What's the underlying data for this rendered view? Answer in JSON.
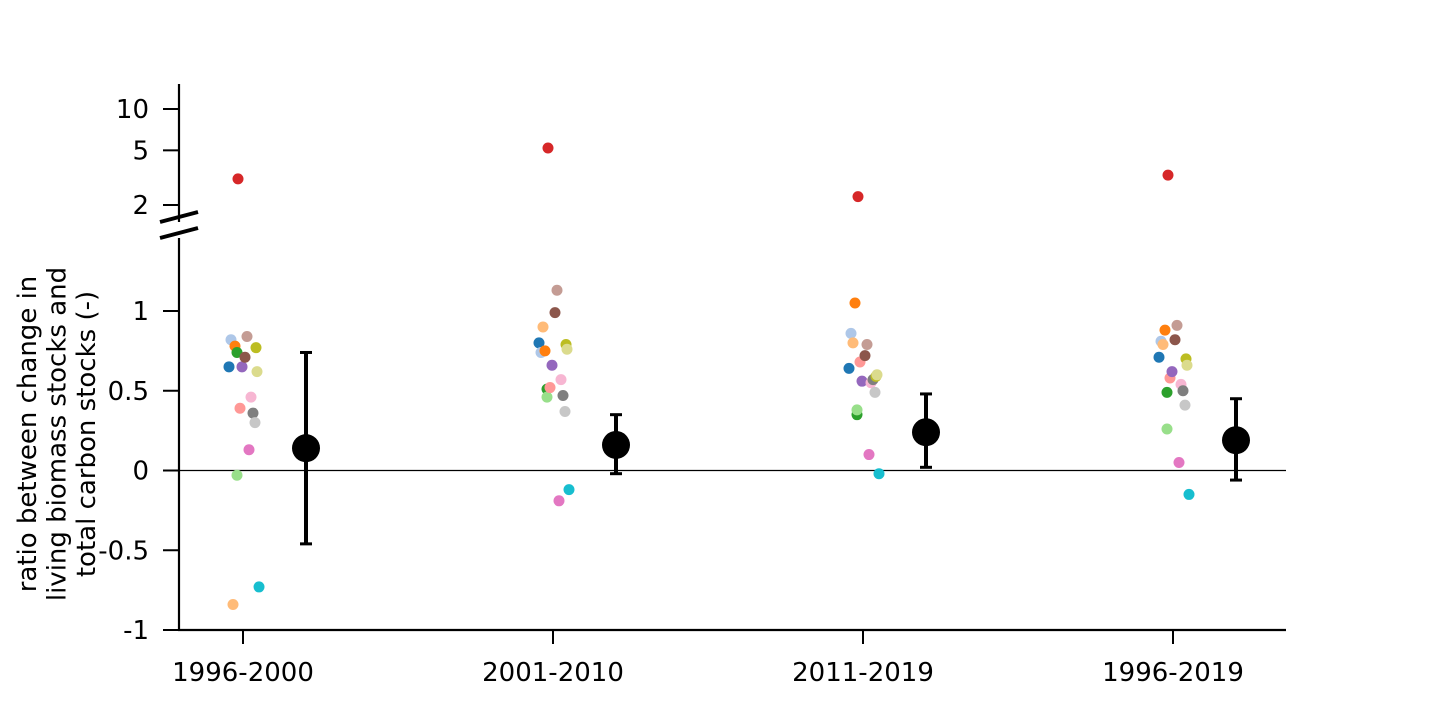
{
  "chart_data": {
    "type": "scatter",
    "title": "",
    "xlabel": "",
    "ylabel_lines": [
      "ratio between change in",
      "living biomass stocks and",
      "total carbon stocks (-)"
    ],
    "categories": [
      "1996-2000",
      "2001-2010",
      "2011-2019",
      "1996-2019"
    ],
    "y_scale": "broken: linear from -1 to 1.4, log-like above 2",
    "ylim_lower": [
      -1,
      1.4
    ],
    "ylim_upper": [
      2,
      12
    ],
    "yticks_lower": [
      {
        "v": -1,
        "label": "-1"
      },
      {
        "v": -0.5,
        "label": "-0.5"
      },
      {
        "v": 0,
        "label": "0"
      },
      {
        "v": 0.5,
        "label": "0.5"
      },
      {
        "v": 1,
        "label": "1"
      }
    ],
    "yticks_upper": [
      {
        "v": 2,
        "label": "2"
      },
      {
        "v": 5,
        "label": "5"
      },
      {
        "v": 10,
        "label": "10"
      }
    ],
    "zero_line": true,
    "grid": false,
    "legend": "none",
    "point_colors": [
      "#1f77b4",
      "#aec7e8",
      "#ff7f0e",
      "#ffbb78",
      "#2ca02c",
      "#98df8a",
      "#d62728",
      "#ff9896",
      "#9467bd",
      "#8c564b",
      "#c49c94",
      "#e377c2",
      "#f7b6d2",
      "#7f7f7f",
      "#c7c7c7",
      "#bcbd22",
      "#dbdb8d",
      "#17becf"
    ],
    "summary_color": "#000000",
    "groups": [
      {
        "category": "1996-2000",
        "points": [
          0.65,
          0.82,
          0.78,
          -0.84,
          0.74,
          -0.03,
          3.1,
          0.39,
          0.65,
          0.71,
          0.84,
          0.13,
          0.46,
          0.36,
          0.3,
          0.77,
          0.62,
          -0.73
        ],
        "mean": 0.14,
        "err_low": -0.46,
        "err_high": 0.74
      },
      {
        "category": "2001-2010",
        "points": [
          0.8,
          0.74,
          0.75,
          0.9,
          0.51,
          0.46,
          5.2,
          0.52,
          0.66,
          0.99,
          1.13,
          -0.19,
          0.57,
          0.47,
          0.37,
          0.79,
          0.76,
          -0.12
        ],
        "mean": 0.16,
        "err_low": -0.02,
        "err_high": 0.35
      },
      {
        "category": "2011-2019",
        "points": [
          0.64,
          0.86,
          1.05,
          0.8,
          0.35,
          0.38,
          2.3,
          0.68,
          0.56,
          0.72,
          0.79,
          0.1,
          0.55,
          0.57,
          0.49,
          0.59,
          0.6,
          -0.02
        ],
        "mean": 0.24,
        "err_low": 0.02,
        "err_high": 0.48
      },
      {
        "category": "1996-2019",
        "points": [
          0.71,
          0.81,
          0.88,
          0.79,
          0.49,
          0.26,
          3.3,
          0.58,
          0.62,
          0.82,
          0.91,
          0.05,
          0.54,
          0.5,
          0.41,
          0.7,
          0.66,
          -0.15
        ],
        "mean": 0.19,
        "err_low": -0.06,
        "err_high": 0.45
      }
    ]
  }
}
